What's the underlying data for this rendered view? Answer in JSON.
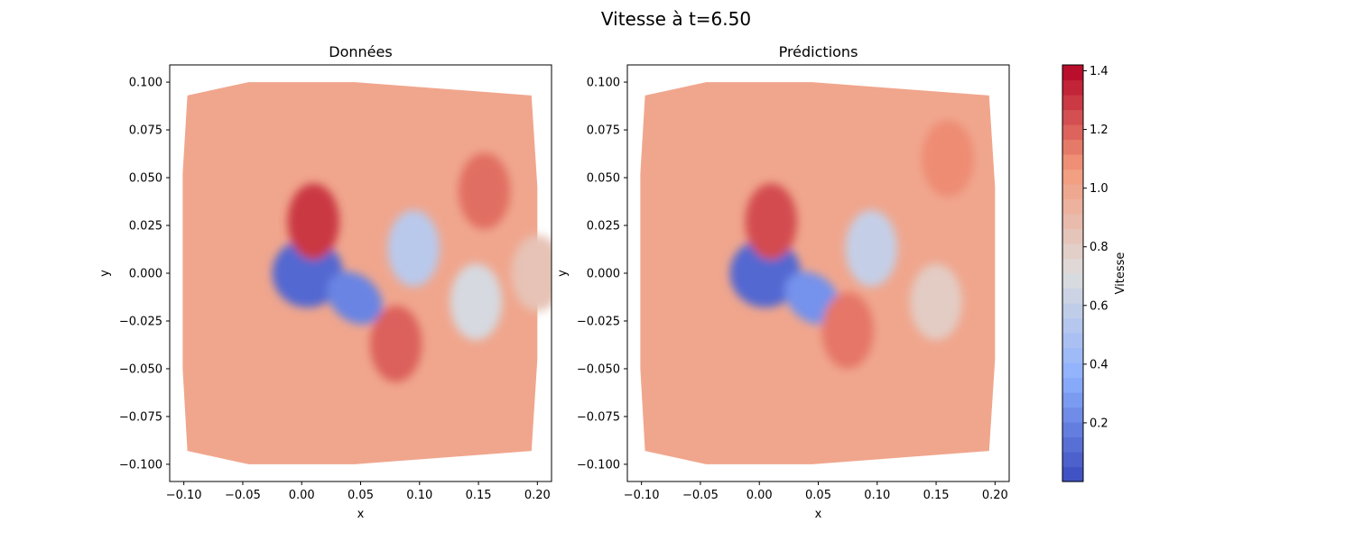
{
  "chart_data": {
    "type": "heatmap",
    "title": "Vitesse à t=6.50",
    "colormap": "coolwarm",
    "panels": [
      {
        "title": "Données",
        "xlabel": "x",
        "ylabel": "y",
        "xlim": [
          -0.112,
          0.212
        ],
        "ylim": [
          -0.109,
          0.109
        ],
        "xticks": [
          "−0.10",
          "−0.05",
          "0.00",
          "0.05",
          "0.10",
          "0.15",
          "0.20"
        ],
        "xtick_values": [
          -0.1,
          -0.05,
          0.0,
          0.05,
          0.1,
          0.15,
          0.2
        ],
        "yticks": [
          "−0.100",
          "−0.075",
          "−0.050",
          "−0.025",
          "0.000",
          "0.025",
          "0.050",
          "0.075",
          "0.100"
        ],
        "ytick_values": [
          -0.1,
          -0.075,
          -0.05,
          -0.025,
          0.0,
          0.025,
          0.05,
          0.075,
          0.1
        ],
        "field_features": [
          {
            "x": 0.005,
            "y": 0.0,
            "value": 0.1
          },
          {
            "x": 0.045,
            "y": -0.013,
            "value": 0.2
          },
          {
            "x": 0.095,
            "y": 0.013,
            "value": 0.55
          },
          {
            "x": 0.148,
            "y": -0.015,
            "value": 0.68
          },
          {
            "x": 0.01,
            "y": 0.027,
            "value": 1.3
          },
          {
            "x": 0.08,
            "y": -0.037,
            "value": 1.2
          },
          {
            "x": 0.155,
            "y": 0.043,
            "value": 1.17
          },
          {
            "x": 0.2,
            "y": 0.0,
            "value": 0.85
          }
        ]
      },
      {
        "title": "Prédictions",
        "xlabel": "x",
        "ylabel": "y",
        "xlim": [
          -0.112,
          0.212
        ],
        "ylim": [
          -0.109,
          0.109
        ],
        "xticks": [
          "−0.10",
          "−0.05",
          "0.00",
          "0.05",
          "0.10",
          "0.15",
          "0.20"
        ],
        "xtick_values": [
          -0.1,
          -0.05,
          0.0,
          0.05,
          0.1,
          0.15,
          0.2
        ],
        "yticks": [
          "−0.100",
          "−0.075",
          "−0.050",
          "−0.025",
          "0.000",
          "0.025",
          "0.050",
          "0.075",
          "0.100"
        ],
        "ytick_values": [
          -0.1,
          -0.075,
          -0.05,
          -0.025,
          0.0,
          0.025,
          0.05,
          0.075,
          0.1
        ],
        "field_features": [
          {
            "x": 0.005,
            "y": 0.0,
            "value": 0.1
          },
          {
            "x": 0.045,
            "y": -0.013,
            "value": 0.25
          },
          {
            "x": 0.095,
            "y": 0.013,
            "value": 0.6
          },
          {
            "x": 0.15,
            "y": -0.015,
            "value": 0.8
          },
          {
            "x": 0.01,
            "y": 0.027,
            "value": 1.25
          },
          {
            "x": 0.075,
            "y": -0.03,
            "value": 1.15
          },
          {
            "x": 0.16,
            "y": 0.06,
            "value": 1.1
          }
        ]
      }
    ],
    "colorbar": {
      "label": "Vitesse",
      "range": [
        0.0,
        1.42
      ],
      "ticks": [
        "0.2",
        "0.4",
        "0.6",
        "0.8",
        "1.0",
        "1.2",
        "1.4"
      ],
      "tick_values": [
        0.2,
        0.4,
        0.6,
        0.8,
        1.0,
        1.2,
        1.4
      ]
    }
  }
}
